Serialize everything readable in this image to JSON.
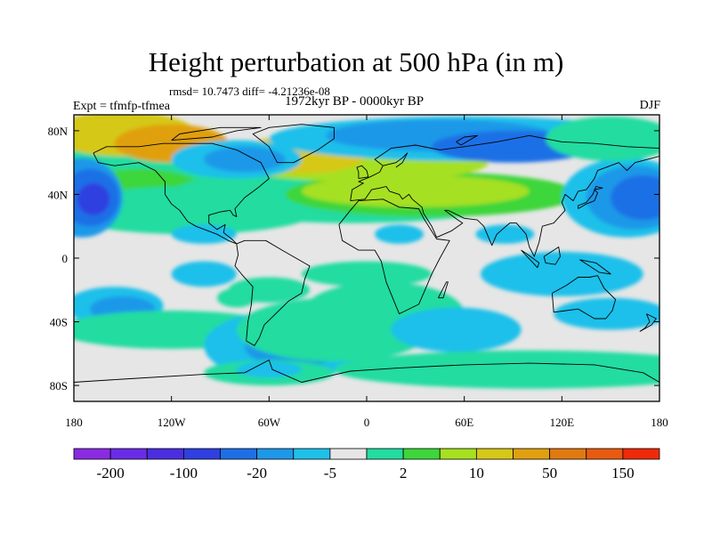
{
  "title": "Height perturbation at 500 hPa (in m)",
  "stats_line": "rmsd= 10.7473 diff= -4.21236e-08",
  "left_label": "Expt = tfmfp-tfmea",
  "center_label": "1972kyr BP - 0000kyr BP",
  "right_label": "DJF",
  "map": {
    "lat_ticks": [
      {
        "label": "80N",
        "lat": 80
      },
      {
        "label": "40N",
        "lat": 40
      },
      {
        "label": "0",
        "lat": 0
      },
      {
        "label": "40S",
        "lat": -40
      },
      {
        "label": "80S",
        "lat": -80
      }
    ],
    "lon_ticks": [
      {
        "label": "180",
        "lon": -180
      },
      {
        "label": "120W",
        "lon": -120
      },
      {
        "label": "60W",
        "lon": -60
      },
      {
        "label": "0",
        "lon": 0
      },
      {
        "label": "60E",
        "lon": 60
      },
      {
        "label": "120E",
        "lon": 120
      },
      {
        "label": "180",
        "lon": 180
      }
    ]
  },
  "colorbar": {
    "colors": [
      "#8a2be2",
      "#6a2be6",
      "#4b2ee0",
      "#2f3fe0",
      "#1e6fe6",
      "#1e98e8",
      "#1ec0ea",
      "#e6e6e6",
      "#22dca0",
      "#3ed63a",
      "#a6e020",
      "#d6c818",
      "#e0a010",
      "#e07a10",
      "#e85a10",
      "#ee2a08"
    ],
    "labels": [
      "-200",
      "-100",
      "-20",
      "-5",
      "2",
      "10",
      "50",
      "150"
    ]
  },
  "colors": {
    "neutral": "#e6e6e6",
    "light_blue": "#1ec0ea",
    "blue": "#1e98e8",
    "dark_blue": "#1e6fe6",
    "deep_blue": "#2f3fe0",
    "green": "#22dca0",
    "lime": "#3ed63a",
    "yellow_green": "#a6e020",
    "gold": "#d6c818",
    "orange": "#e0a010"
  }
}
